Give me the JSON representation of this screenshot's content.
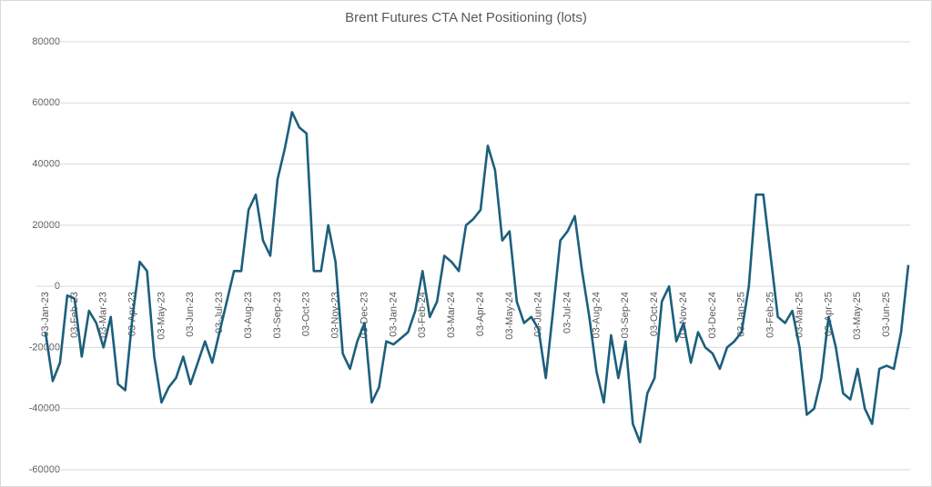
{
  "chart_data": {
    "type": "line",
    "title": "Brent Futures CTA Net Positioning (lots)",
    "categories": [
      "03-Jan-23",
      null,
      null,
      null,
      "03-Feb-23",
      null,
      null,
      null,
      "03-Mar-23",
      null,
      null,
      null,
      "03-Apr-23",
      null,
      null,
      null,
      "03-May-23",
      null,
      null,
      null,
      "03-Jun-23",
      null,
      null,
      null,
      "03-Jul-23",
      null,
      null,
      null,
      "03-Aug-23",
      null,
      null,
      null,
      "03-Sep-23",
      null,
      null,
      null,
      "03-Oct-23",
      null,
      null,
      null,
      "03-Nov-23",
      null,
      null,
      null,
      "03-Dec-23",
      null,
      null,
      null,
      "03-Jan-24",
      null,
      null,
      null,
      "03-Feb-24",
      null,
      null,
      null,
      "03-Mar-24",
      null,
      null,
      null,
      "03-Apr-24",
      null,
      null,
      null,
      "03-May-24",
      null,
      null,
      null,
      "03-Jun-24",
      null,
      null,
      null,
      "03-Jul-24",
      null,
      null,
      null,
      "03-Aug-24",
      null,
      null,
      null,
      "03-Sep-24",
      null,
      null,
      null,
      "03-Oct-24",
      null,
      null,
      null,
      "03-Nov-24",
      null,
      null,
      null,
      "03-Dec-24",
      null,
      null,
      null,
      "03-Jan-25",
      null,
      null,
      null,
      "03-Feb-25",
      null,
      null,
      null,
      "03-Mar-25",
      null,
      null,
      null,
      "03-Apr-25",
      null,
      null,
      null,
      "03-May-25",
      null,
      null,
      null,
      "03-Jun-25",
      null,
      null,
      null
    ],
    "series": [
      {
        "name": "CTA Net Positioning",
        "color": "#1c5f7c",
        "values": [
          -15000,
          -31000,
          -25000,
          -3000,
          -4000,
          -23000,
          -8000,
          -12000,
          -20000,
          -10000,
          -32000,
          -34000,
          -10000,
          8000,
          5000,
          -23000,
          -38000,
          -33000,
          -30000,
          -23000,
          -32000,
          -25000,
          -18000,
          -25000,
          -15000,
          -5000,
          5000,
          5000,
          25000,
          30000,
          15000,
          10000,
          35000,
          45000,
          57000,
          52000,
          50000,
          5000,
          5000,
          20000,
          8000,
          -22000,
          -27000,
          -18000,
          -12000,
          -38000,
          -33000,
          -18000,
          -19000,
          -17000,
          -15000,
          -8000,
          5000,
          -10000,
          -5000,
          10000,
          8000,
          5000,
          20000,
          22000,
          25000,
          46000,
          38000,
          15000,
          18000,
          -5000,
          -12000,
          -10000,
          -14000,
          -30000,
          -8000,
          15000,
          18000,
          23000,
          5000,
          -10000,
          -28000,
          -38000,
          -16000,
          -30000,
          -18000,
          -45000,
          -51000,
          -35000,
          -30000,
          -5000,
          0,
          -18000,
          -12000,
          -25000,
          -15000,
          -20000,
          -22000,
          -27000,
          -20000,
          -18000,
          -15000,
          0,
          30000,
          30000,
          10000,
          -10000,
          -12000,
          -8000,
          -20000,
          -42000,
          -40000,
          -30000,
          -10000,
          -20000,
          -35000,
          -37000,
          -27000,
          -40000,
          -45000,
          -27000,
          -26000,
          -27000,
          -15000,
          7000
        ]
      }
    ],
    "ylim": [
      -60000,
      80000
    ],
    "yticks": [
      -60000,
      -40000,
      -20000,
      0,
      20000,
      40000,
      60000,
      80000
    ],
    "grid": true
  }
}
